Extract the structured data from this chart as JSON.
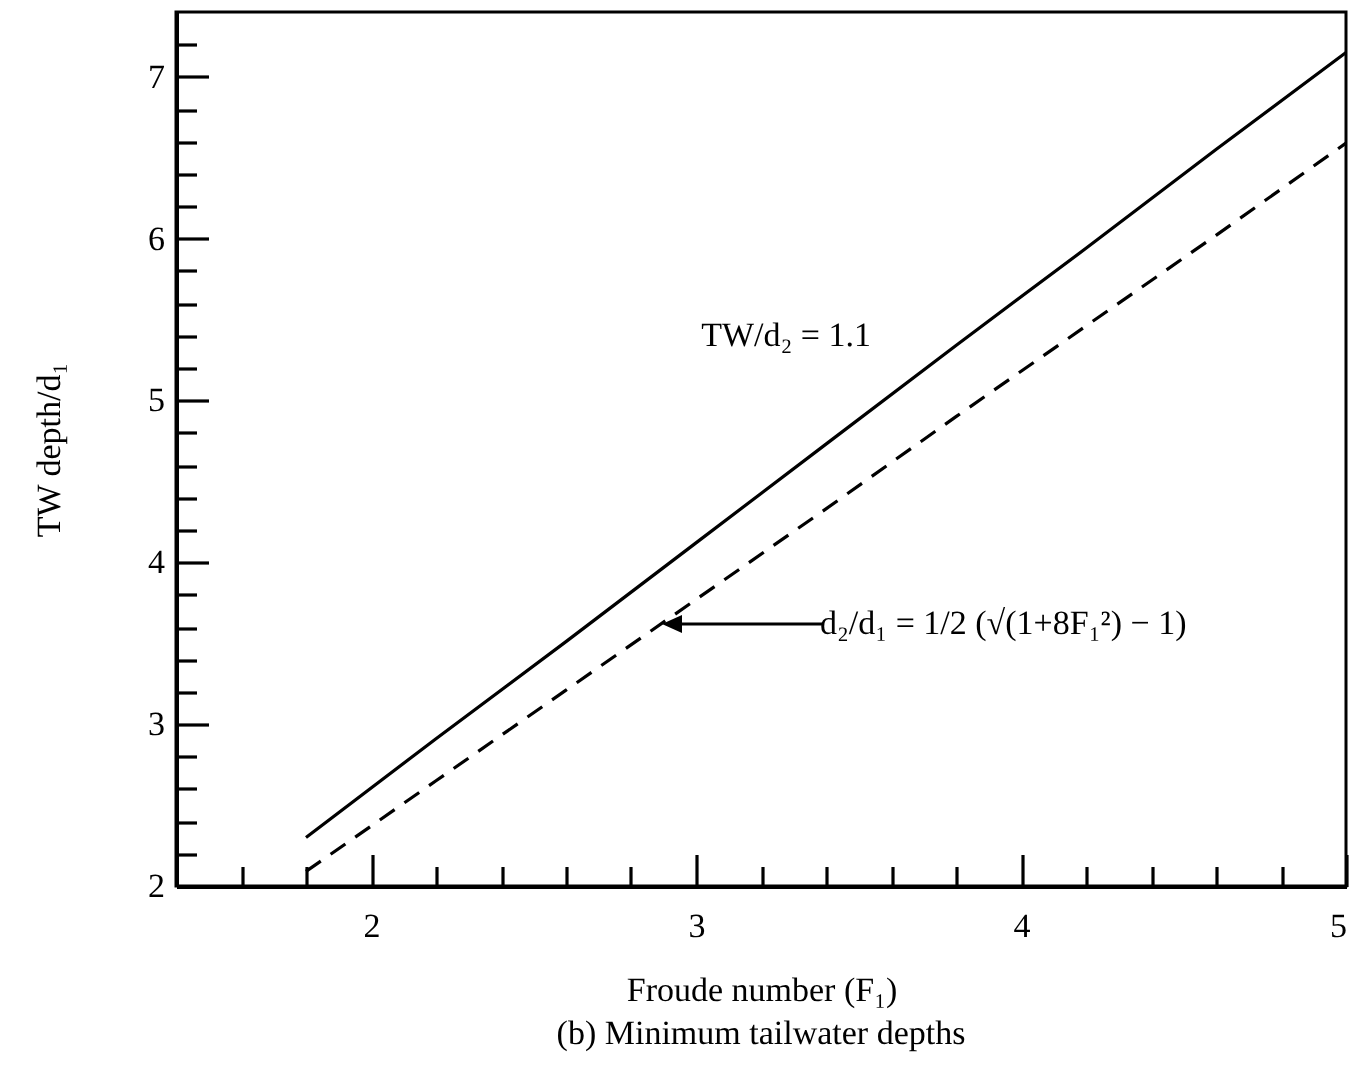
{
  "chart_data": {
    "type": "line",
    "xlabel": "Froude number (F₁)",
    "ylabel": "TW depth/d₁",
    "x": [
      1.8,
      2.2,
      2.6,
      3.0,
      3.4,
      3.8,
      4.2,
      4.6,
      5.0
    ],
    "series": [
      {
        "color": "#000000",
        "line_style": "solid",
        "values": [
          2.3,
          2.91,
          3.51,
          4.12,
          4.73,
          5.34,
          5.94,
          6.55,
          7.15
        ]
      },
      {
        "color": "#000000",
        "line_style": "dashed",
        "values": [
          2.09,
          2.65,
          3.21,
          3.77,
          4.33,
          4.9,
          5.46,
          6.02,
          6.59
        ]
      }
    ],
    "xlim": [
      1.4,
      5
    ],
    "xticks": [
      {
        "value": 1.6,
        "label": null
      },
      {
        "value": 1.8,
        "label": null
      },
      2,
      {
        "value": 2.2,
        "label": null
      },
      {
        "value": 2.4,
        "label": null
      },
      {
        "value": 2.6,
        "label": null
      },
      {
        "value": 2.8,
        "label": null
      },
      3,
      {
        "value": 3.2,
        "label": null
      },
      {
        "value": 3.4,
        "label": null
      },
      {
        "value": 3.6,
        "label": null
      },
      {
        "value": 3.8,
        "label": null
      },
      4,
      {
        "value": 4.2,
        "label": null
      },
      {
        "value": 4.4,
        "label": null
      },
      {
        "value": 4.6,
        "label": null
      },
      {
        "value": 4.8,
        "label": null
      },
      5
    ],
    "ylim": [
      2,
      7.4
    ],
    "yticks": [
      2,
      {
        "value": 2.2,
        "label": null
      },
      {
        "value": 2.4,
        "label": null
      },
      {
        "value": 2.6,
        "label": null
      },
      {
        "value": 2.8,
        "label": null
      },
      3,
      {
        "value": 3.2,
        "label": null
      },
      {
        "value": 3.4,
        "label": null
      },
      {
        "value": 3.6,
        "label": null
      },
      {
        "value": 3.8,
        "label": null
      },
      4,
      {
        "value": 4.2,
        "label": null
      },
      {
        "value": 4.4,
        "label": null
      },
      {
        "value": 4.6,
        "label": null
      },
      {
        "value": 4.8,
        "label": null
      },
      5,
      {
        "value": 5.2,
        "label": null
      },
      {
        "value": 5.4,
        "label": null
      },
      {
        "value": 5.6,
        "label": null
      },
      {
        "value": 5.8,
        "label": null
      },
      6,
      {
        "value": 6.2,
        "label": null
      },
      {
        "value": 6.4,
        "label": null
      },
      {
        "value": 6.6,
        "label": null
      },
      {
        "value": 6.8,
        "label": null
      },
      7,
      {
        "value": 7.2,
        "label": null
      }
    ],
    "grid": false,
    "marker": "none",
    "annotations": [
      {
        "text": "TW/d₂ = 1.1",
        "x": 3.6,
        "y": 5.03
      },
      "d₂/d₁ = 1/2 (√(1+8F₁²) − 1)",
      "(b) Minimum tailwater depths"
    ]
  }
}
